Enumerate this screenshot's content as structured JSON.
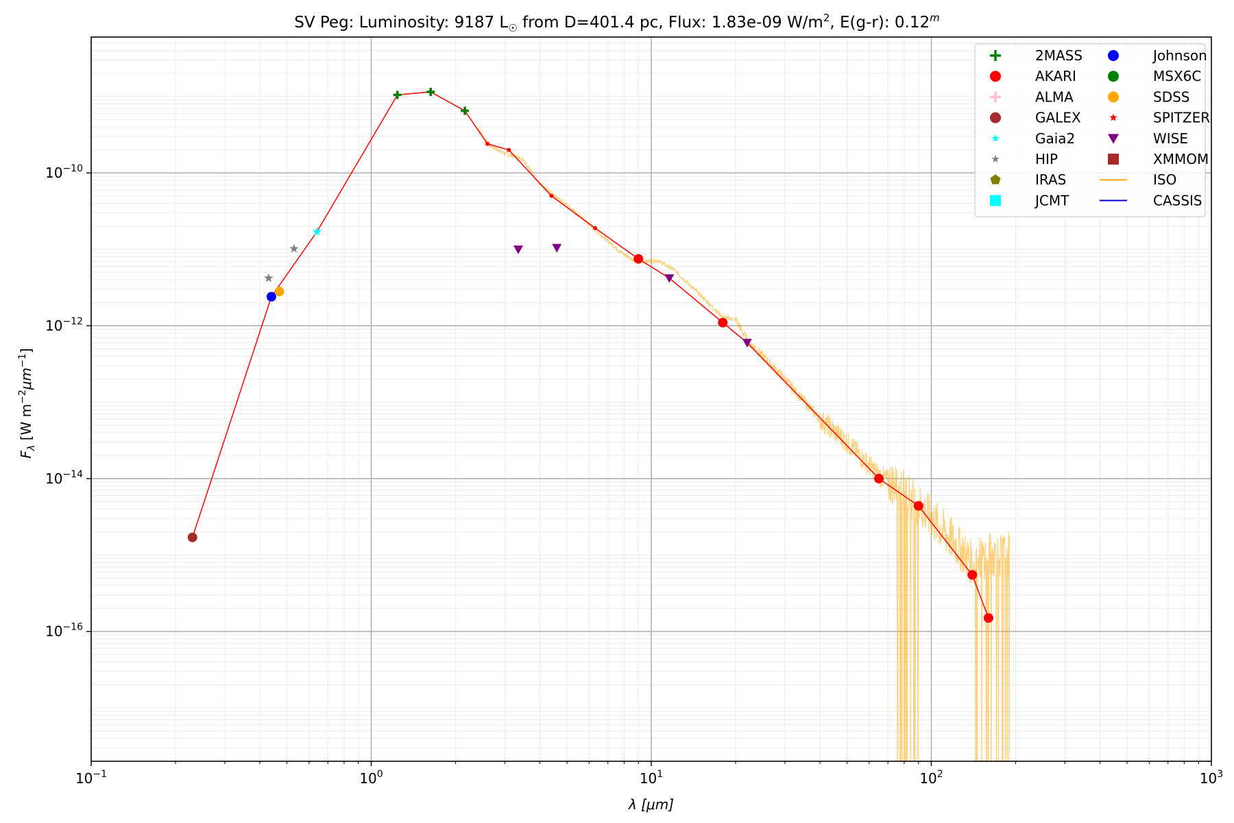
{
  "chart_data": {
    "type": "scatter",
    "title": {
      "object": "SV Peg:",
      "text1": "Luminosity: 9187 L",
      "sun": "☉",
      "text2": " from D=401.4 pc, Flux: 1.83e-09 W/m",
      "sq": "2",
      "text3": ", E(g-r): 0.12",
      "sup_m": "m"
    },
    "xlabel": "λ [μm]",
    "ylabel": {
      "main": "F",
      "sub": "λ",
      "units_a": " [W m",
      "units_sup1": "−2",
      "units_b": "μm",
      "units_sup2": "−1",
      "units_c": "]"
    },
    "x_scale": "log",
    "y_scale": "log",
    "xlim": [
      0.1,
      1000
    ],
    "ylim": [
      2e-18,
      6e-09
    ],
    "grid": true,
    "legend_position": "top-right",
    "x_ticks": [
      {
        "value": 0.1,
        "base": "10",
        "exp": "−1"
      },
      {
        "value": 1,
        "base": "10",
        "exp": "0"
      },
      {
        "value": 10,
        "base": "10",
        "exp": "1"
      },
      {
        "value": 100,
        "base": "10",
        "exp": "2"
      },
      {
        "value": 1000,
        "base": "10",
        "exp": "3"
      }
    ],
    "y_ticks": [
      {
        "value": 1e-16,
        "base": "10",
        "exp": "−16"
      },
      {
        "value": 1e-14,
        "base": "10",
        "exp": "−14"
      },
      {
        "value": 1e-12,
        "base": "10",
        "exp": "−12"
      },
      {
        "value": 1e-10,
        "base": "10",
        "exp": "−10"
      }
    ],
    "model_line": {
      "color": "#ff0000",
      "points": [
        [
          0.23,
          1.7e-15
        ],
        [
          0.44,
          2.4e-12
        ],
        [
          0.64,
          1.7e-11
        ],
        [
          1.24,
          1.05e-09
        ],
        [
          1.63,
          1.15e-09
        ],
        [
          2.16,
          6.5e-10
        ],
        [
          2.6,
          2.4e-10
        ],
        [
          3.1,
          2e-10
        ],
        [
          4.4,
          5e-11
        ],
        [
          6.3,
          1.9e-11
        ],
        [
          9.0,
          7.5e-12
        ],
        [
          11.6,
          4.2e-12
        ],
        [
          18.0,
          1.1e-12
        ],
        [
          22.0,
          6e-13
        ],
        [
          65.0,
          1e-14
        ],
        [
          90.0,
          4.4e-15
        ],
        [
          140.0,
          5.5e-16
        ],
        [
          160.0,
          1.5e-16
        ]
      ]
    },
    "series": [
      {
        "name": "2MASS",
        "marker": "plus",
        "color": "#008000",
        "points": [
          [
            1.24,
            1.05e-09
          ],
          [
            1.63,
            1.15e-09
          ],
          [
            2.16,
            6.5e-10
          ]
        ]
      },
      {
        "name": "AKARI",
        "marker": "circle",
        "color": "#ff0000",
        "points": [
          [
            9.0,
            7.5e-12
          ],
          [
            18.0,
            1.1e-12
          ],
          [
            65.0,
            1e-14
          ],
          [
            90.0,
            4.4e-15
          ],
          [
            140.0,
            5.5e-16
          ],
          [
            160.0,
            1.5e-16
          ]
        ]
      },
      {
        "name": "ALMA",
        "marker": "plus",
        "color": "#ffc0cb",
        "points": []
      },
      {
        "name": "GALEX",
        "marker": "circle",
        "color": "#a52a2a",
        "points": [
          [
            0.23,
            1.7e-15
          ]
        ]
      },
      {
        "name": "Gaia2",
        "marker": "star",
        "color": "#00ffff",
        "points": [
          [
            0.64,
            1.7e-11
          ]
        ]
      },
      {
        "name": "HIP",
        "marker": "star",
        "color": "#808080",
        "points": [
          [
            0.43,
            4.2e-12
          ],
          [
            0.53,
            1.02e-11
          ]
        ]
      },
      {
        "name": "IRAS",
        "marker": "pentagon",
        "color": "#808000",
        "points": []
      },
      {
        "name": "JCMT",
        "marker": "square",
        "color": "#00ffff",
        "points": []
      },
      {
        "name": "Johnson",
        "marker": "circle",
        "color": "#0000ff",
        "points": [
          [
            0.44,
            2.4e-12
          ]
        ]
      },
      {
        "name": "MSX6C",
        "marker": "circle",
        "color": "#008000",
        "points": []
      },
      {
        "name": "SDSS",
        "marker": "circle",
        "color": "#ffa500",
        "points": [
          [
            0.47,
            2.8e-12
          ]
        ]
      },
      {
        "name": "SPITZER",
        "marker": "star",
        "color": "#ff0000",
        "points": []
      },
      {
        "name": "WISE",
        "marker": "triangle-down",
        "color": "#800080",
        "points": [
          [
            3.35,
            1e-11
          ],
          [
            4.6,
            1.05e-11
          ],
          [
            11.6,
            4.2e-12
          ],
          [
            22.0,
            6e-13
          ]
        ]
      },
      {
        "name": "XMMOM",
        "marker": "square",
        "color": "#a52a2a",
        "points": []
      },
      {
        "name": "ISO",
        "marker": "line",
        "color": "#ffa500",
        "points": []
      },
      {
        "name": "CASSIS",
        "marker": "line",
        "color": "#0000cd",
        "points": []
      }
    ],
    "iso_spectrum": {
      "color": "#ffa500",
      "range_um": [
        2.4,
        190
      ],
      "anchors": [
        [
          2.4,
          4e-10
        ],
        [
          2.6,
          2.4e-10
        ],
        [
          3.0,
          1.8e-10
        ],
        [
          3.5,
          1.5e-10
        ],
        [
          4.0,
          7e-11
        ],
        [
          5.0,
          3.8e-11
        ],
        [
          6.3,
          1.8e-11
        ],
        [
          8.0,
          8.5e-12
        ],
        [
          9.0,
          6.8e-12
        ],
        [
          10.5,
          7.2e-12
        ],
        [
          12.0,
          5.5e-12
        ],
        [
          15.0,
          2.5e-12
        ],
        [
          18.0,
          1.3e-12
        ],
        [
          20.0,
          1.2e-12
        ],
        [
          22.0,
          6.5e-13
        ],
        [
          30.0,
          2e-13
        ],
        [
          40.0,
          6e-14
        ],
        [
          50.0,
          3e-14
        ],
        [
          65.0,
          1.1e-14
        ],
        [
          80.0,
          7e-15
        ],
        [
          100.0,
          3e-15
        ],
        [
          120.0,
          1.5e-15
        ],
        [
          140.0,
          8e-16
        ],
        [
          160.0,
          1e-15
        ],
        [
          190.0,
          1e-15
        ]
      ]
    }
  }
}
